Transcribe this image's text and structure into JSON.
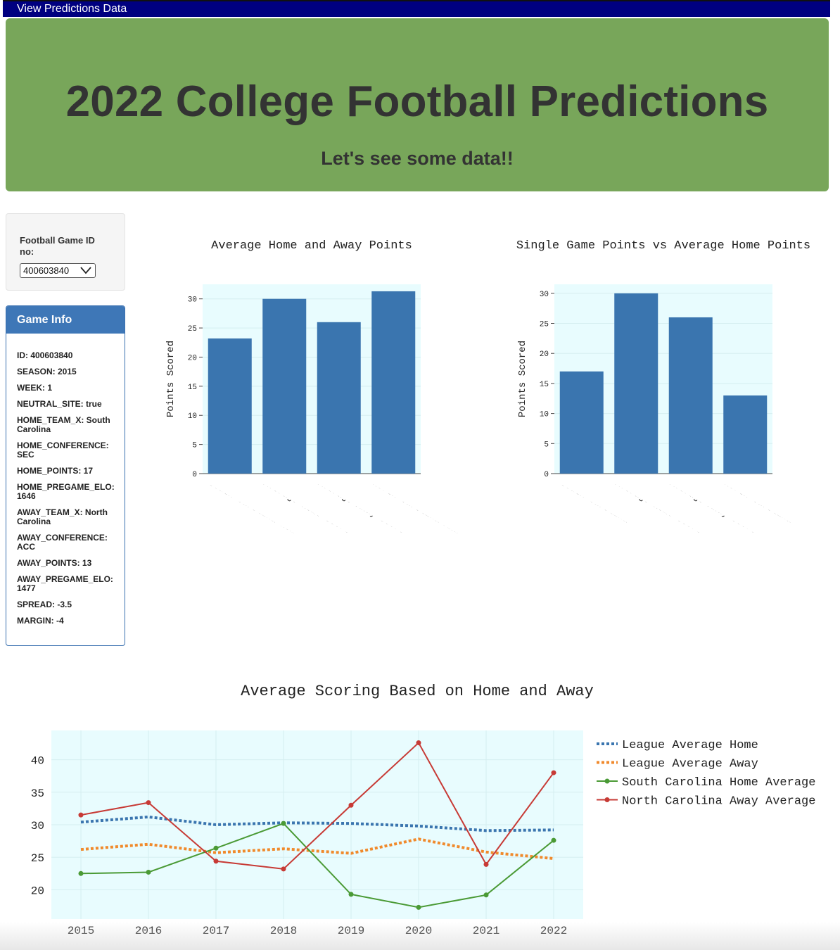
{
  "navbar": {
    "link": "View Predictions Data"
  },
  "header": {
    "title": "2022 College Football Predictions",
    "subtitle": "Let's see some data!!"
  },
  "selector": {
    "label": "Football Game ID no:",
    "selected": "400603840"
  },
  "game_info": {
    "heading": "Game Info",
    "items": [
      "ID: 400603840",
      "SEASON: 2015",
      "WEEK: 1",
      "NEUTRAL_SITE: true",
      "HOME_TEAM_X: South Carolina",
      "HOME_CONFERENCE: SEC",
      "HOME_POINTS: 17",
      "HOME_PREGAME_ELO: 1646",
      "AWAY_TEAM_X: North Carolina",
      "AWAY_CONFERENCE: ACC",
      "AWAY_POINTS: 13",
      "AWAY_PREGAME_ELO: 1477",
      "SPREAD: -3.5",
      "MARGIN: -4"
    ]
  },
  "colors": {
    "bar": "#3a75af",
    "plot_bg": "#e8fcfe",
    "home_avg": "#3a75af",
    "away_avg": "#f08a2c",
    "sc_home": "#4a9a35",
    "nc_away": "#c73a35"
  },
  "chart_data": [
    {
      "type": "bar",
      "title": "Average Home and Away Points",
      "ylabel": "Points Scored",
      "categories": [
        "South Carolina Hom",
        "Average Home Score",
        "Average Away Score",
        "North Carolina Awa"
      ],
      "values": [
        23.2,
        30.0,
        26.0,
        31.3
      ],
      "yticks": [
        0,
        5,
        10,
        15,
        20,
        25,
        30
      ],
      "ylim": [
        0,
        32.5
      ]
    },
    {
      "type": "bar",
      "title": "Single Game Points vs Average Home Points",
      "ylabel": "Points Scored",
      "categories": [
        "South Carolina",
        "Average Home Score",
        "Average Away Score",
        "North Carolina"
      ],
      "values": [
        17,
        30.0,
        26.0,
        13
      ],
      "yticks": [
        0,
        5,
        10,
        15,
        20,
        25,
        30
      ],
      "ylim": [
        0,
        31.5
      ]
    },
    {
      "type": "line",
      "title": "Average Scoring Based on Home and Away",
      "x": [
        "2015",
        "2016",
        "2017",
        "2018",
        "2019",
        "2020",
        "2021",
        "2022"
      ],
      "yticks": [
        20,
        25,
        30,
        35,
        40
      ],
      "ylim": [
        15.5,
        44.5
      ],
      "legend_position": "right",
      "series": [
        {
          "name": "League Average Home",
          "style": "dotted",
          "values": [
            30.4,
            31.2,
            30.0,
            30.3,
            30.2,
            29.8,
            29.1,
            29.2
          ]
        },
        {
          "name": "League Average Away",
          "style": "dotted",
          "values": [
            26.2,
            27.0,
            25.7,
            26.3,
            25.6,
            27.8,
            25.8,
            24.8
          ]
        },
        {
          "name": "South Carolina Home Average",
          "style": "solid-markers",
          "values": [
            22.5,
            22.7,
            26.4,
            30.2,
            19.3,
            17.3,
            19.2,
            27.6
          ]
        },
        {
          "name": "North Carolina Away Average",
          "style": "solid-markers",
          "values": [
            31.5,
            33.4,
            24.4,
            23.2,
            33.0,
            42.6,
            23.9,
            38.0
          ]
        }
      ]
    }
  ]
}
